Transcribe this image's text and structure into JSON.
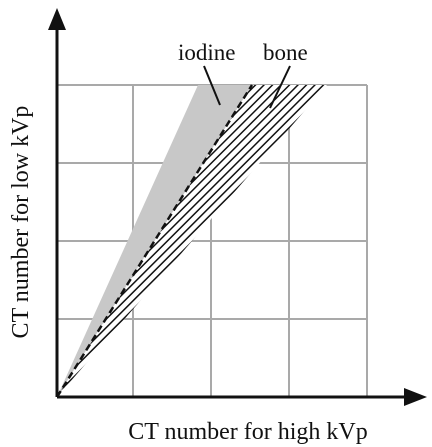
{
  "diagram": {
    "x_axis_label": "CT number for high kVp",
    "y_axis_label": "CT number for low kVp",
    "regions": [
      {
        "label": "iodine",
        "fill": "#c8c8c8",
        "pattern": "solid"
      },
      {
        "label": "bone",
        "fill": "#111111",
        "pattern": "diagonal-hatch"
      }
    ],
    "boundary_line_style": "dashed",
    "grid_cells": {
      "columns": 4,
      "rows": 4
    },
    "colors": {
      "axis": "#111111",
      "grid": "#a9a9a9",
      "text": "#111111",
      "background": "#ffffff"
    }
  }
}
